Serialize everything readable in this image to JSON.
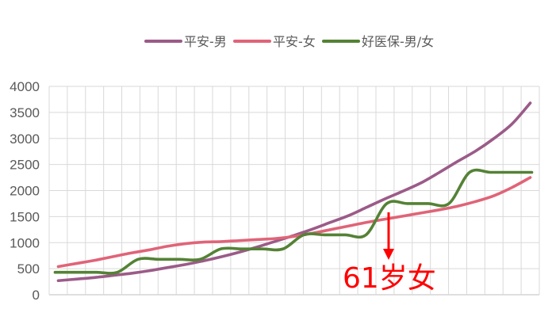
{
  "chart_data": {
    "type": "line",
    "title": "",
    "xlabel": "",
    "ylabel": "",
    "ylim": [
      0,
      4000
    ],
    "yticks": [
      0,
      500,
      1000,
      1500,
      2000,
      2500,
      3000,
      3500,
      4000
    ],
    "grid": true,
    "legend": "top",
    "x_count": 27,
    "series": [
      {
        "name": "平安-男",
        "color": "#9b5b88",
        "values": [
          270,
          300,
          330,
          370,
          410,
          460,
          520,
          580,
          650,
          730,
          820,
          920,
          1030,
          1140,
          1260,
          1390,
          1520,
          1680,
          1840,
          1990,
          2150,
          2350,
          2560,
          2760,
          3000,
          3280,
          3680
        ]
      },
      {
        "name": "平安-女",
        "color": "#e06478",
        "values": [
          540,
          600,
          660,
          730,
          800,
          860,
          930,
          980,
          1010,
          1020,
          1040,
          1060,
          1080,
          1120,
          1180,
          1250,
          1320,
          1390,
          1450,
          1510,
          1570,
          1630,
          1700,
          1790,
          1900,
          2060,
          2250
        ]
      },
      {
        "name": "好医保-男/女",
        "color": "#548235",
        "values": [
          430,
          430,
          430,
          430,
          680,
          680,
          680,
          680,
          880,
          880,
          880,
          880,
          1150,
          1150,
          1150,
          1150,
          1750,
          1750,
          1750,
          1750,
          2350,
          2350,
          2350,
          2350
        ],
        "x_start": 3
      }
    ],
    "annotations": [
      {
        "text": "61岁女",
        "color": "#ff0000"
      }
    ]
  }
}
